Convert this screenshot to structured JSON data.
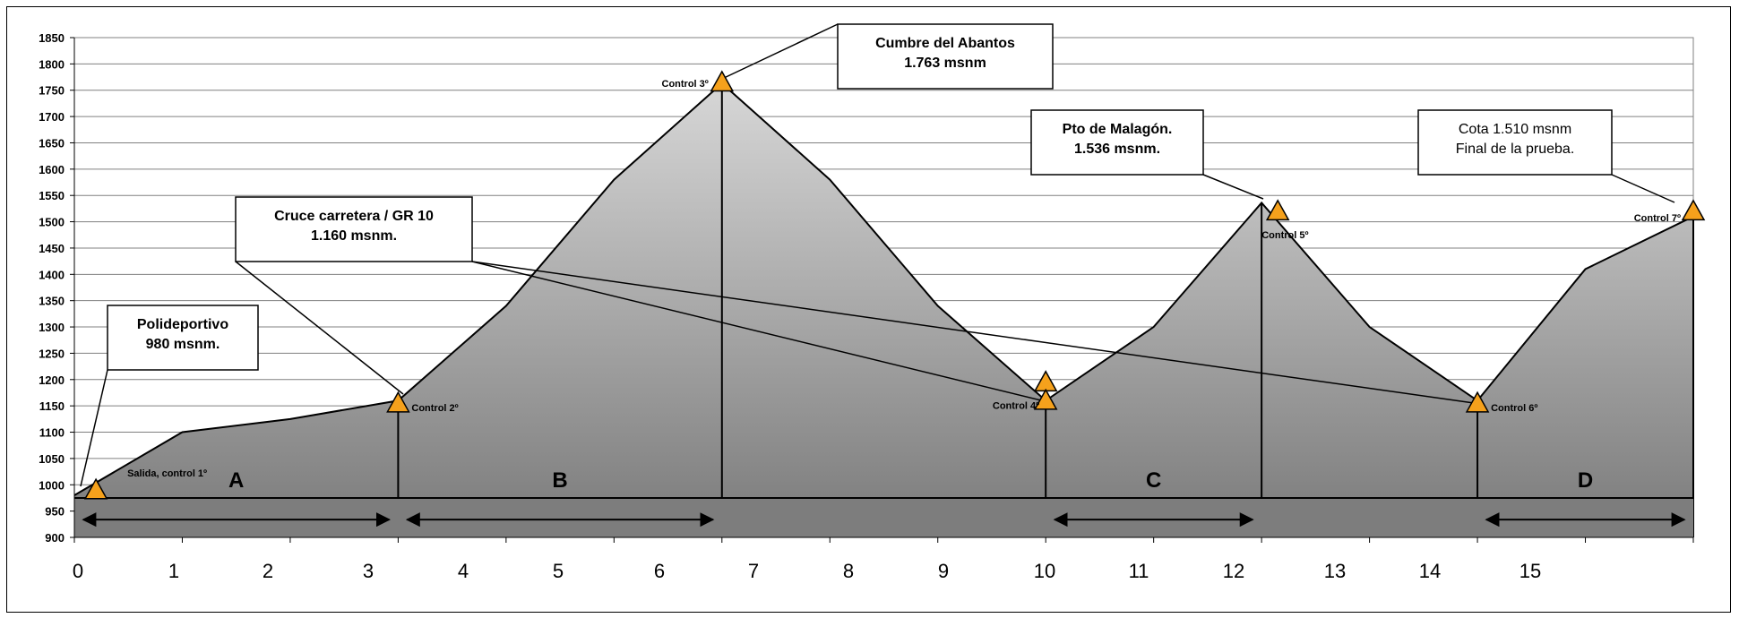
{
  "chart_data": {
    "type": "area",
    "ylim": [
      900,
      1850
    ],
    "y_ticks": [
      900,
      950,
      1000,
      1050,
      1100,
      1150,
      1200,
      1250,
      1300,
      1350,
      1400,
      1450,
      1500,
      1550,
      1600,
      1650,
      1700,
      1750,
      1800,
      1850
    ],
    "x_ticks": [
      "0",
      "1",
      "2",
      "3",
      "4",
      "5",
      "6",
      "7",
      "8",
      "9",
      "10",
      "11",
      "12",
      "13",
      "14",
      "15"
    ],
    "grid": true,
    "profile": {
      "x": [
        0,
        1,
        2,
        3,
        4,
        5,
        6,
        7,
        8,
        9,
        10,
        11,
        12,
        13,
        14,
        15
      ],
      "y": [
        980,
        1100,
        1125,
        1160,
        1340,
        1580,
        1763,
        1580,
        1340,
        1160,
        1300,
        1536,
        1300,
        1160,
        1410,
        1510
      ]
    },
    "controls": [
      {
        "label": "Salida, control 1º",
        "x": 0.2,
        "y": 990
      },
      {
        "label": "Control 2º",
        "x": 3.0,
        "y": 1155
      },
      {
        "label": "Control 3º",
        "x": 6.0,
        "y": 1765
      },
      {
        "label": "",
        "x": 9.0,
        "y": 1195
      },
      {
        "label": "Control 4º",
        "x": 9.0,
        "y": 1160
      },
      {
        "label": "Control 5º",
        "x": 11.15,
        "y": 1520
      },
      {
        "label": "Control 6º",
        "x": 13.0,
        "y": 1155
      },
      {
        "label": "Control 7º",
        "x": 15.0,
        "y": 1520
      }
    ],
    "segments": [
      {
        "label": "A",
        "from": 0,
        "to": 3
      },
      {
        "label": "B",
        "from": 3,
        "to": 6
      },
      {
        "label": "C",
        "from": 9,
        "to": 11
      },
      {
        "label": "D",
        "from": 13,
        "to": 15
      }
    ],
    "baseline_y": 975,
    "callouts": [
      {
        "lines": [
          "Polideportivo",
          "980 msnm."
        ],
        "bold": true
      },
      {
        "lines": [
          "Cruce carretera / GR 10",
          "1.160 msnm."
        ],
        "bold": true
      },
      {
        "lines": [
          "Cumbre del Abantos",
          "1.763 msnm"
        ],
        "bold": true
      },
      {
        "lines": [
          "Pto de Malagón.",
          "1.536 msnm."
        ],
        "bold": true
      },
      {
        "lines": [
          "Cota 1.510 msnm",
          "Final de la prueba."
        ],
        "bold": false
      }
    ],
    "colors": {
      "area_top": "#d7d7d7",
      "area_bottom": "#7a7a7a",
      "band": "#7d7d7d",
      "marker": "#f5a11c"
    }
  }
}
